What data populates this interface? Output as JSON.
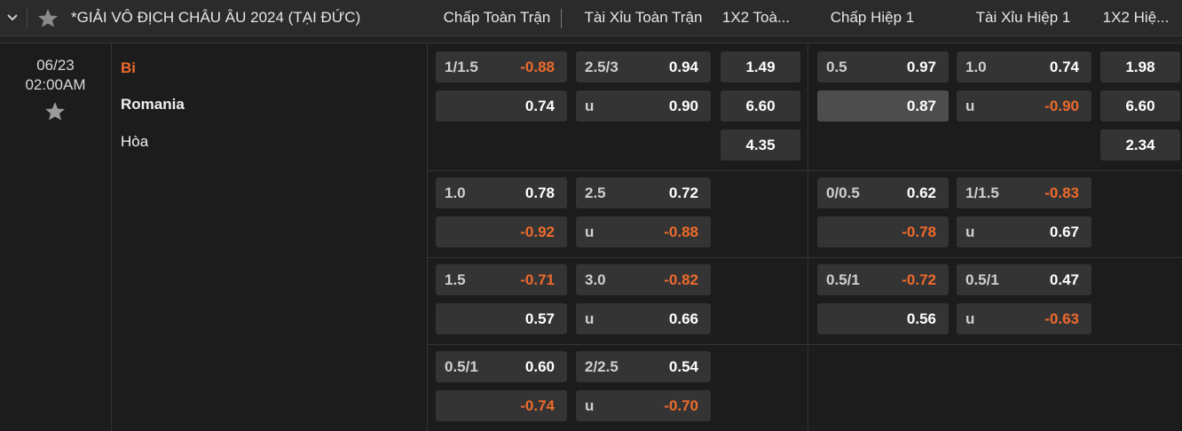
{
  "header": {
    "title": "*GIẢI VÔ ĐỊCH CHÂU ÂU 2024 (TẠI ĐỨC)",
    "columns": [
      "Chấp Toàn Trận",
      "Tài Xỉu Toàn Trận",
      "1X2 Toà...",
      "Chấp Hiệp 1",
      "Tài Xỉu Hiệp 1",
      "1X2 Hiệ..."
    ]
  },
  "match": {
    "date": "06/23",
    "time": "02:00AM",
    "teams": [
      "Bi",
      "Romania",
      "Hòa"
    ]
  },
  "markets": [
    {
      "full_time": {
        "handicap": {
          "line": "1/1.5",
          "home": "-0.88",
          "away": "0.74"
        },
        "over_under": {
          "line": "2.5/3",
          "over": "0.94",
          "under_label": "u",
          "under": "0.90"
        },
        "x12": [
          "1.49",
          "6.60",
          "4.35"
        ]
      },
      "first_half": {
        "handicap": {
          "line": "0.5",
          "home": "0.97",
          "away": "0.87"
        },
        "over_under": {
          "line": "1.0",
          "over": "0.74",
          "under_label": "u",
          "under": "-0.90"
        },
        "x12": [
          "1.98",
          "6.60",
          "2.34"
        ]
      }
    },
    {
      "full_time": {
        "handicap": {
          "line": "1.0",
          "home": "0.78",
          "away": "-0.92"
        },
        "over_under": {
          "line": "2.5",
          "over": "0.72",
          "under_label": "u",
          "under": "-0.88"
        }
      },
      "first_half": {
        "handicap": {
          "line": "0/0.5",
          "home": "0.62",
          "away": "-0.78"
        },
        "over_under": {
          "line": "1/1.5",
          "over": "-0.83",
          "under_label": "u",
          "under": "0.67"
        }
      }
    },
    {
      "full_time": {
        "handicap": {
          "line": "1.5",
          "home": "-0.71",
          "away": "0.57"
        },
        "over_under": {
          "line": "3.0",
          "over": "-0.82",
          "under_label": "u",
          "under": "0.66"
        }
      },
      "first_half": {
        "handicap": {
          "line": "0.5/1",
          "home": "-0.72",
          "away": "0.56"
        },
        "over_under": {
          "line": "0.5/1",
          "over": "0.47",
          "under_label": "u",
          "under": "-0.63"
        }
      }
    },
    {
      "full_time": {
        "handicap": {
          "line": "0.5/1",
          "home": "0.60",
          "away": "-0.74"
        },
        "over_under": {
          "line": "2/2.5",
          "over": "0.54",
          "under_label": "u",
          "under": "-0.70"
        }
      }
    }
  ]
}
